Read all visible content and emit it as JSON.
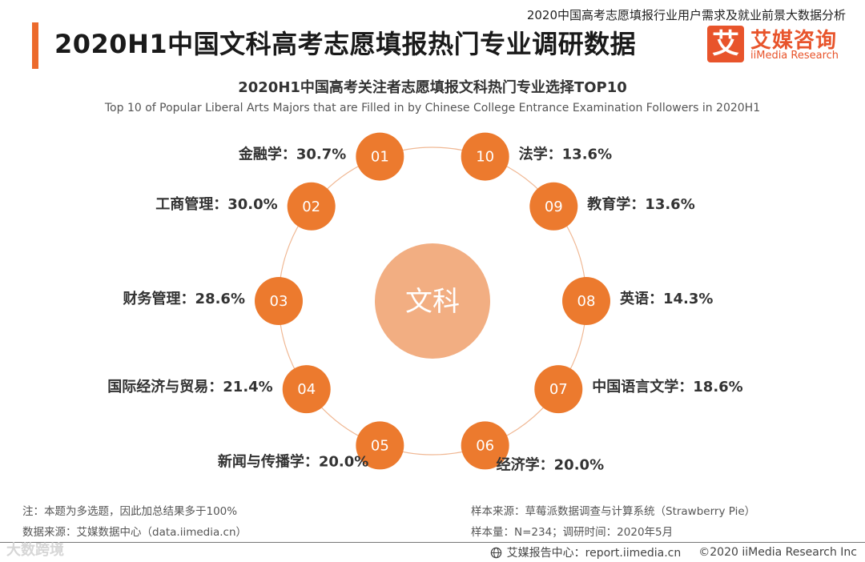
{
  "header": {
    "report_series": "2020中国高考志愿填报行业用户需求及就业前景大数据分析",
    "main_title": "2020H1中国文科高考志愿填报热门专业调研数据"
  },
  "logo": {
    "glyph": "艾",
    "name_cn": "艾媒咨询",
    "name_en": "iiMedia Research"
  },
  "chart_data": {
    "type": "radial-bubble",
    "title": "2020H1中国高考关注者志愿填报文科热门专业选择TOP10",
    "subtitle": "Top 10 of Popular Liberal Arts Majors that are Filled in by Chinese College Entrance Examination Followers in 2020H1",
    "center_label": "文科",
    "unit": "%",
    "items": [
      {
        "rank": "01",
        "major": "金融学",
        "value": 30.7
      },
      {
        "rank": "02",
        "major": "工商管理",
        "value": 30.0
      },
      {
        "rank": "03",
        "major": "财务管理",
        "value": 28.6
      },
      {
        "rank": "04",
        "major": "国际经济与贸易",
        "value": 21.4
      },
      {
        "rank": "05",
        "major": "新闻与传播学",
        "value": 20.0
      },
      {
        "rank": "06",
        "major": "经济学",
        "value": 20.0
      },
      {
        "rank": "07",
        "major": "中国语言文学",
        "value": 18.6
      },
      {
        "rank": "08",
        "major": "英语",
        "value": 14.3
      },
      {
        "rank": "09",
        "major": "教育学",
        "value": 13.6
      },
      {
        "rank": "10",
        "major": "法学",
        "value": 13.6
      }
    ],
    "colors": {
      "bubble": "#ec7a2e",
      "center": "#f2ae82",
      "ring": "#f0b894"
    }
  },
  "notes": {
    "note": "注：本题为多选题，因此加总结果多于100%",
    "data_source": "数据来源：艾媒数据中心（data.iimedia.cn）",
    "sample_source": "样本来源：草莓派数据调查与计算系统（Strawberry Pie）",
    "sample_size": "样本量：N=234；调研时间：2020年5月"
  },
  "footer": {
    "watermark": "大数跨境",
    "report_center": "艾媒报告中心：report.iimedia.cn",
    "copyright": "©2020  iiMedia Research  Inc"
  }
}
